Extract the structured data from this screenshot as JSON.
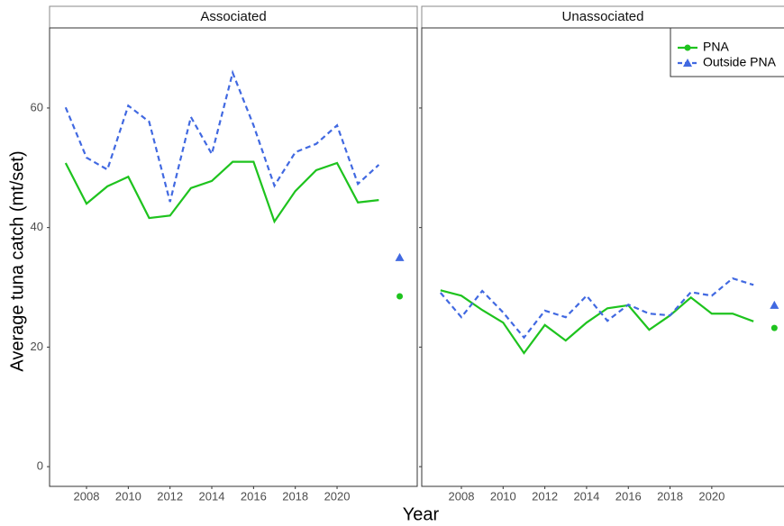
{
  "axis_titles": {
    "x": "Year",
    "y": "Average tuna catch (mt/set)"
  },
  "chart_data": [
    {
      "type": "line",
      "title": "Associated",
      "x": [
        2007,
        2008,
        2009,
        2010,
        2011,
        2012,
        2013,
        2014,
        2015,
        2016,
        2017,
        2018,
        2019,
        2020,
        2021,
        2022
      ],
      "xlim": [
        2006.23,
        2023.84
      ],
      "xticks": [
        2008,
        2010,
        2012,
        2014,
        2016,
        2018,
        2020
      ],
      "ylim": [
        -3.3,
        73.4
      ],
      "yticks": [
        0,
        20,
        40,
        60
      ],
      "point_x": 2023,
      "series": [
        {
          "name": "PNA",
          "color": "#1ec31e",
          "dash": "solid",
          "marker": "circle",
          "values": [
            50.8,
            44.0,
            46.9,
            48.5,
            41.6,
            42.0,
            46.6,
            47.8,
            51.0,
            51.0,
            41.0,
            46.1,
            49.6,
            50.8,
            44.2,
            44.6
          ],
          "point_value": 28.5
        },
        {
          "name": "Outside PNA",
          "color": "#4169e1",
          "dash": "dashed",
          "marker": "triangle",
          "values": [
            60.1,
            51.7,
            49.7,
            60.4,
            57.7,
            44.3,
            58.5,
            52.3,
            65.9,
            57.1,
            47.0,
            52.6,
            54.0,
            57.1,
            47.3,
            50.5
          ],
          "point_value": 35.0
        }
      ]
    },
    {
      "type": "line",
      "title": "Unassociated",
      "x": [
        2007,
        2008,
        2009,
        2010,
        2011,
        2012,
        2013,
        2014,
        2015,
        2016,
        2017,
        2018,
        2019,
        2020,
        2021,
        2022
      ],
      "xlim": [
        2006.1,
        2023.72
      ],
      "xticks": [
        2008,
        2010,
        2012,
        2014,
        2016,
        2018,
        2020
      ],
      "ylim": [
        -3.3,
        73.4
      ],
      "yticks": [
        0,
        20,
        40,
        60
      ],
      "point_x": 2023,
      "legend": "top right",
      "series": [
        {
          "name": "PNA",
          "color": "#1ec31e",
          "dash": "solid",
          "marker": "circle",
          "values": [
            29.5,
            28.6,
            26.2,
            24.1,
            19.0,
            23.7,
            21.1,
            24.1,
            26.5,
            27.0,
            22.9,
            25.3,
            28.3,
            25.6,
            25.6,
            24.3
          ],
          "point_value": 23.2
        },
        {
          "name": "Outside PNA",
          "color": "#4169e1",
          "dash": "dashed",
          "marker": "triangle",
          "values": [
            29.1,
            25.0,
            29.4,
            25.8,
            21.6,
            26.1,
            25.0,
            28.6,
            24.4,
            27.1,
            25.6,
            25.3,
            29.2,
            28.6,
            31.5,
            30.4
          ],
          "point_value": 27.0
        }
      ]
    }
  ]
}
